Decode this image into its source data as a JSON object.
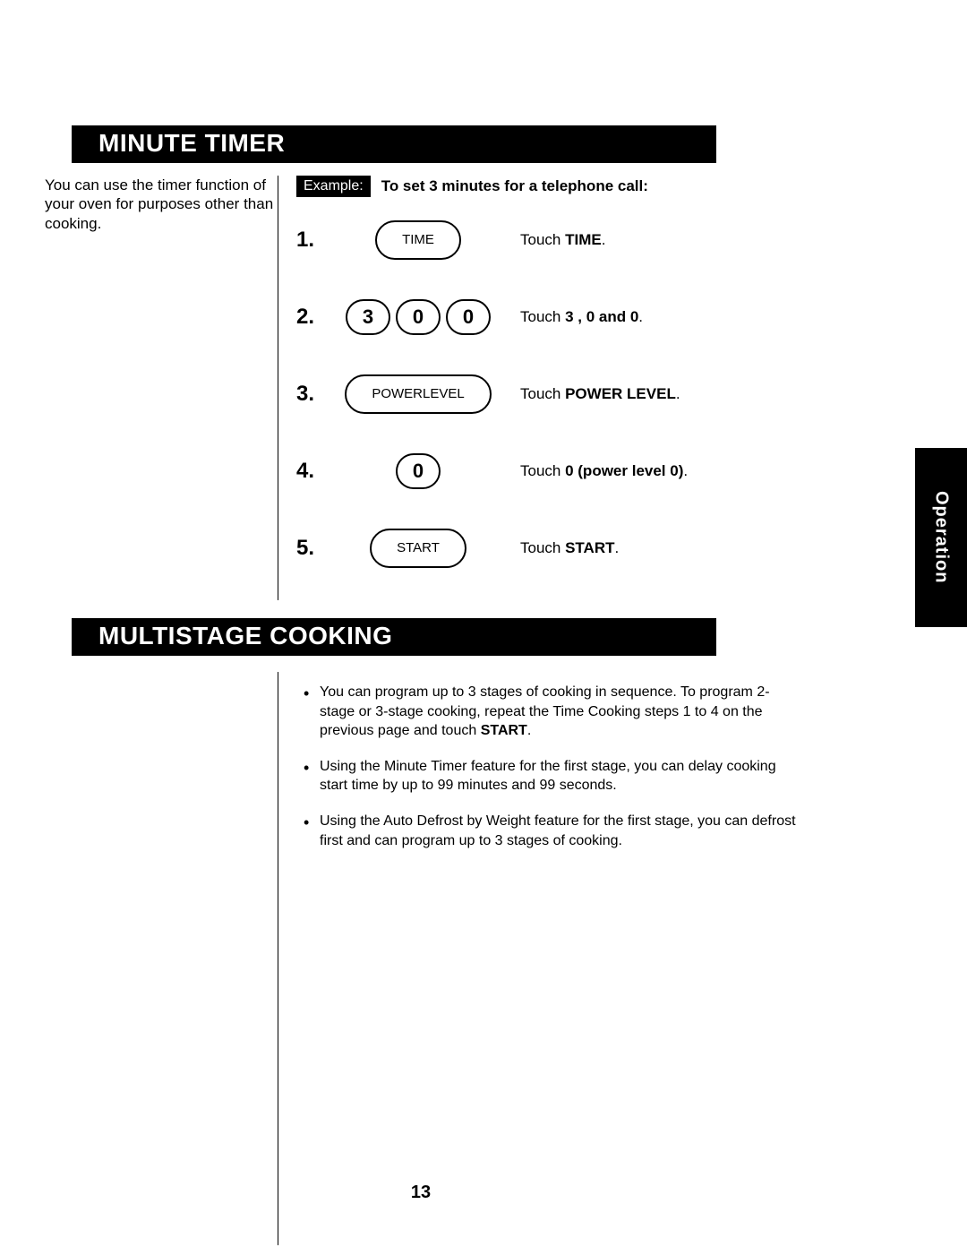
{
  "sideTab": "Operation",
  "pageNumber": "13",
  "section1": {
    "title": "MINUTE TIMER",
    "intro": "You can use the timer function of your oven for purposes other than cooking.",
    "exampleLabel": "Example:",
    "exampleTitle": "To set 3 minutes for a telephone call:",
    "steps": [
      {
        "num": "1.",
        "buttons": [
          {
            "label": "TIME",
            "cls": "wide"
          }
        ],
        "desc_pre": "Touch ",
        "desc_bold": "TIME",
        "desc_post": "."
      },
      {
        "num": "2.",
        "buttons": [
          {
            "label": "3",
            "cls": "num"
          },
          {
            "label": "0",
            "cls": "num"
          },
          {
            "label": "0",
            "cls": "num"
          }
        ],
        "desc_pre": "Touch ",
        "desc_bold": "3 ,  0  and  0",
        "desc_post": "."
      },
      {
        "num": "3.",
        "buttons": [
          {
            "label": "POWER\nLEVEL",
            "cls": "wide"
          }
        ],
        "desc_pre": "Touch ",
        "desc_bold": "POWER LEVEL",
        "desc_post": "."
      },
      {
        "num": "4.",
        "buttons": [
          {
            "label": "0",
            "cls": "num"
          }
        ],
        "desc_pre": "Touch ",
        "desc_bold": "0 (power level 0)",
        "desc_post": "."
      },
      {
        "num": "5.",
        "buttons": [
          {
            "label": "START",
            "cls": "wide"
          }
        ],
        "desc_pre": "Touch ",
        "desc_bold": "START",
        "desc_post": "."
      }
    ]
  },
  "section2": {
    "title": "MULTISTAGE COOKING",
    "bullets": [
      {
        "pre": "You can program up to 3 stages of cooking in sequence. To program 2-stage or 3-stage cooking, repeat the Time Cooking steps 1 to 4 on the previous page and touch ",
        "bold": "START",
        "post": "."
      },
      {
        "pre": "Using the Minute Timer feature for the first stage, you can delay cooking start time by up to 99 minutes and 99 seconds.",
        "bold": "",
        "post": ""
      },
      {
        "pre": "Using the Auto Defrost by Weight feature for the first stage, you can defrost first and can program up to 3 stages of cooking.",
        "bold": "",
        "post": ""
      }
    ]
  }
}
